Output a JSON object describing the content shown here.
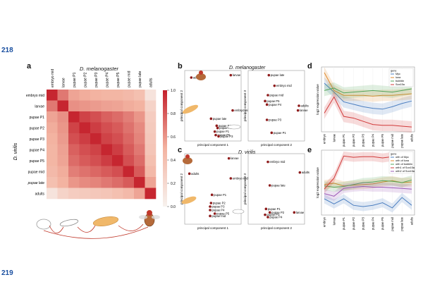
{
  "page": {
    "line_top": "218",
    "line_bottom": "219"
  },
  "panel_a": {
    "letter": "a",
    "title": "D. melanogaster",
    "side_label": "D. virilis",
    "stages": [
      "embryo mid",
      "larvae",
      "pupae P1",
      "pupae P2",
      "pupae P3",
      "pupae P4",
      "pupae P5",
      "pupae mid",
      "pupae late",
      "adults"
    ],
    "colorbar_ticks": [
      "1.0",
      "0.8",
      "0.6",
      "0.4",
      "0.2",
      "0.0"
    ],
    "correlation_shade": [
      [
        0.98,
        0.7,
        0.55,
        0.52,
        0.5,
        0.48,
        0.48,
        0.45,
        0.4,
        0.12
      ],
      [
        0.7,
        0.98,
        0.62,
        0.6,
        0.58,
        0.56,
        0.55,
        0.52,
        0.5,
        0.25
      ],
      [
        0.55,
        0.62,
        0.98,
        0.88,
        0.84,
        0.78,
        0.74,
        0.68,
        0.6,
        0.3
      ],
      [
        0.52,
        0.6,
        0.88,
        0.98,
        0.9,
        0.84,
        0.8,
        0.72,
        0.64,
        0.32
      ],
      [
        0.5,
        0.58,
        0.84,
        0.9,
        0.98,
        0.88,
        0.84,
        0.76,
        0.66,
        0.34
      ],
      [
        0.48,
        0.56,
        0.78,
        0.84,
        0.88,
        0.98,
        0.9,
        0.8,
        0.7,
        0.36
      ],
      [
        0.48,
        0.55,
        0.74,
        0.8,
        0.84,
        0.9,
        0.98,
        0.84,
        0.74,
        0.4
      ],
      [
        0.45,
        0.52,
        0.68,
        0.72,
        0.76,
        0.8,
        0.84,
        0.98,
        0.8,
        0.45
      ],
      [
        0.4,
        0.5,
        0.6,
        0.64,
        0.66,
        0.7,
        0.74,
        0.8,
        0.98,
        0.55
      ],
      [
        0.12,
        0.25,
        0.3,
        0.32,
        0.34,
        0.36,
        0.4,
        0.45,
        0.55,
        0.98
      ]
    ]
  },
  "panel_b": {
    "letter": "b",
    "title": "D. melanogaster",
    "left": {
      "xlabel": "principal component 1",
      "ylabel": "principal component 2",
      "points": [
        {
          "label": "adults",
          "x": -2.3,
          "y": 2.4
        },
        {
          "label": "larvae",
          "x": 1.9,
          "y": 2.6
        },
        {
          "label": "embryo mid",
          "x": 2.1,
          "y": -0.4
        },
        {
          "label": "pupae late",
          "x": -0.2,
          "y": -1.1
        },
        {
          "label": "pupae P4",
          "x": 0.4,
          "y": -1.7
        },
        {
          "label": "pupae P2",
          "x": 0.5,
          "y": -1.9
        },
        {
          "label": "pupae P1",
          "x": 0.2,
          "y": -2.2
        },
        {
          "label": "pupae P5",
          "x": 0.3,
          "y": -2.5
        },
        {
          "label": "pupae P3",
          "x": 0.6,
          "y": -2.6
        }
      ]
    },
    "right": {
      "xlabel": "principal component 2",
      "ylabel": "principal component 3",
      "points": [
        {
          "label": "pupae late",
          "x": -0.8,
          "y": 2.6
        },
        {
          "label": "embryo mid",
          "x": -0.2,
          "y": 1.7
        },
        {
          "label": "pupae mid",
          "x": -0.9,
          "y": 0.9
        },
        {
          "label": "pupae P5",
          "x": -1.2,
          "y": 0.4
        },
        {
          "label": "pupae P4",
          "x": -1.0,
          "y": 0.1
        },
        {
          "label": "adults",
          "x": 2.4,
          "y": 0.0
        },
        {
          "label": "larvae",
          "x": 2.3,
          "y": -0.4
        },
        {
          "label": "pupae P3",
          "x": -1.0,
          "y": -1.2
        },
        {
          "label": "pupae P1",
          "x": -0.5,
          "y": -2.3
        }
      ]
    }
  },
  "panel_c": {
    "letter": "c",
    "title": "D. virilis",
    "left": {
      "xlabel": "principal component 1",
      "ylabel": "principal component 2",
      "points": [
        {
          "label": "larvae",
          "x": 1.7,
          "y": 2.6
        },
        {
          "label": "adults",
          "x": -2.5,
          "y": 1.3
        },
        {
          "label": "embryo mid",
          "x": 1.9,
          "y": 0.9
        },
        {
          "label": "pupae P1",
          "x": -0.1,
          "y": -0.5
        },
        {
          "label": "pupae P2",
          "x": -0.2,
          "y": -1.2
        },
        {
          "label": "pupae P3",
          "x": -0.3,
          "y": -1.5
        },
        {
          "label": "pupae P4",
          "x": -0.3,
          "y": -1.8
        },
        {
          "label": "pupae mid",
          "x": -0.3,
          "y": -2.3
        },
        {
          "label": "pupae P5",
          "x": 0.2,
          "y": -2.1
        }
      ]
    },
    "right": {
      "xlabel": "principal component 2",
      "ylabel": "principal component 3",
      "points": [
        {
          "label": "embryo mid",
          "x": -0.9,
          "y": 2.3
        },
        {
          "label": "adults",
          "x": 2.5,
          "y": 1.4
        },
        {
          "label": "pupae late",
          "x": -0.7,
          "y": 0.3
        },
        {
          "label": "pupae P1",
          "x": -1.1,
          "y": -1.7
        },
        {
          "label": "pupae P2",
          "x": -0.7,
          "y": -2.0
        },
        {
          "label": "pupae P3",
          "x": -1.2,
          "y": -2.2
        },
        {
          "label": "larvae",
          "x": 1.9,
          "y": -2.0
        },
        {
          "label": "pupae P4",
          "x": -0.9,
          "y": -2.4
        }
      ]
    }
  },
  "chart_data": [
    {
      "type": "line",
      "panel": "d",
      "ylabel": "log2 expression value",
      "categories": [
        "embryo",
        "larvae",
        "pupae P1",
        "pupae P2",
        "pupae P3",
        "pupae P4",
        "pupae P5",
        "pupae mid",
        "pupae late",
        "adults"
      ],
      "legend_title": "gene",
      "legend": "top-right",
      "series": [
        {
          "name": "Myc",
          "color": "#4c7fc0",
          "values": [
            8.5,
            7.4,
            6.2,
            5.9,
            5.6,
            5.4,
            5.3,
            5.6,
            6.0,
            6.3
          ]
        },
        {
          "name": "luna",
          "color": "#e08a2e",
          "values": [
            9.8,
            7.6,
            7.0,
            7.0,
            7.0,
            6.9,
            7.0,
            7.0,
            7.1,
            7.2
          ]
        },
        {
          "name": "bubblin",
          "color": "#52a45a",
          "values": [
            7.6,
            7.9,
            7.3,
            7.4,
            7.5,
            7.6,
            7.5,
            7.4,
            7.6,
            7.8
          ]
        },
        {
          "name": "Sox15a",
          "color": "#d13a3a",
          "values": [
            4.8,
            6.8,
            4.4,
            4.2,
            3.8,
            3.4,
            3.3,
            3.3,
            3.2,
            3.1
          ]
        }
      ]
    },
    {
      "type": "line",
      "panel": "e",
      "ylabel": "log2 expression value",
      "categories": [
        "embryo",
        "larvae",
        "pupae P1",
        "pupae P2",
        "pupae P3",
        "pupae P4",
        "pupae P5",
        "pupae mid",
        "pupae late",
        "adults"
      ],
      "legend_title": "gene",
      "legend": "top-right",
      "series": [
        {
          "name": "orth of Myc",
          "color": "#4c7fc0",
          "values": [
            3.0,
            2.2,
            3.0,
            2.0,
            1.8,
            2.0,
            2.4,
            1.6,
            3.2,
            2.0
          ]
        },
        {
          "name": "orth of luna",
          "color": "#e08a2e",
          "values": [
            5.2,
            5.4,
            5.0,
            5.1,
            5.2,
            5.3,
            5.6,
            5.8,
            5.5,
            5.6
          ]
        },
        {
          "name": "orth of bubblin",
          "color": "#52a45a",
          "values": [
            5.0,
            4.8,
            4.9,
            5.2,
            5.5,
            5.6,
            5.8,
            5.7,
            5.5,
            5.9
          ]
        },
        {
          "name": "orth1 of Sox15a",
          "color": "#d13a3a",
          "values": [
            4.5,
            6.2,
            9.6,
            9.4,
            9.5,
            9.5,
            9.3,
            9.5,
            9.6,
            9.6
          ]
        },
        {
          "name": "orth2 of Sox15a",
          "color": "#9b59b6",
          "values": [
            3.8,
            3.4,
            4.6,
            4.8,
            4.9,
            4.8,
            4.8,
            4.7,
            4.6,
            4.5
          ]
        }
      ]
    }
  ]
}
